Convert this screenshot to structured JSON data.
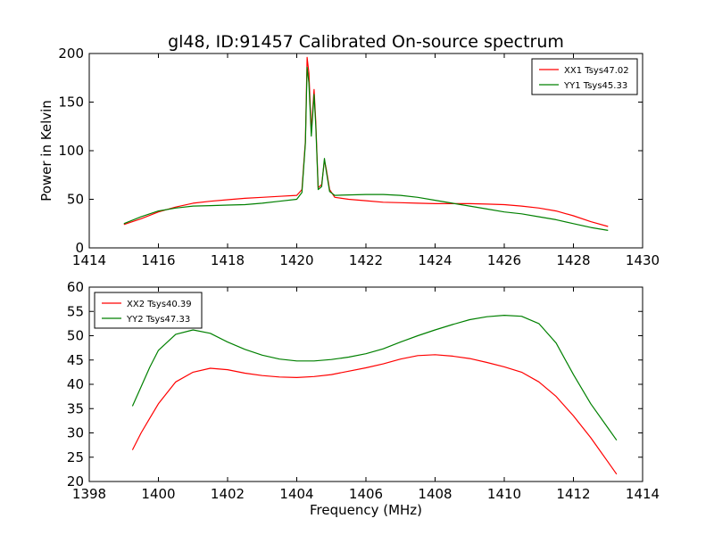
{
  "figure": {
    "title": "gl48, ID:91457 Calibrated On-source spectrum"
  },
  "chart_data": [
    {
      "type": "line",
      "panel": "top",
      "title": "gl48, ID:91457 Calibrated On-source spectrum",
      "xlabel": "",
      "ylabel": "Power in Kelvin",
      "xlim": [
        1414,
        1430
      ],
      "ylim": [
        0,
        200
      ],
      "xticks": [
        1414,
        1416,
        1418,
        1420,
        1422,
        1424,
        1426,
        1428,
        1430
      ],
      "yticks": [
        0,
        50,
        100,
        150,
        200
      ],
      "grid": false,
      "legend": "top-right",
      "series": [
        {
          "name": "XX1 Tsys47.02",
          "color": "#ff0000",
          "x": [
            1415.0,
            1415.5,
            1416.0,
            1416.5,
            1417.0,
            1417.5,
            1418.0,
            1418.5,
            1419.0,
            1419.5,
            1420.0,
            1420.15,
            1420.25,
            1420.3,
            1420.35,
            1420.42,
            1420.5,
            1420.55,
            1420.62,
            1420.72,
            1420.8,
            1420.85,
            1420.95,
            1421.1,
            1421.5,
            1422.0,
            1422.5,
            1423.0,
            1423.5,
            1424.0,
            1424.5,
            1425.0,
            1425.5,
            1426.0,
            1426.5,
            1427.0,
            1427.5,
            1428.0,
            1428.5,
            1429.0
          ],
          "y": [
            24,
            30,
            37,
            42,
            46,
            48,
            49.5,
            51,
            52,
            53,
            54,
            60,
            110,
            196,
            180,
            120,
            163,
            130,
            62,
            65,
            90,
            82,
            60,
            52,
            50,
            48.5,
            47,
            46.5,
            46,
            45.5,
            45.5,
            45.5,
            45,
            44.5,
            43,
            41,
            38,
            33,
            27,
            22
          ]
        },
        {
          "name": "YY1 Tsys45.33",
          "color": "#008000",
          "x": [
            1415.0,
            1415.5,
            1416.0,
            1416.5,
            1417.0,
            1417.5,
            1418.0,
            1418.5,
            1419.0,
            1419.5,
            1420.0,
            1420.15,
            1420.25,
            1420.3,
            1420.35,
            1420.42,
            1420.5,
            1420.55,
            1420.62,
            1420.72,
            1420.8,
            1420.85,
            1420.95,
            1421.1,
            1421.5,
            1422.0,
            1422.5,
            1423.0,
            1423.5,
            1424.0,
            1424.5,
            1425.0,
            1425.5,
            1426.0,
            1426.5,
            1427.0,
            1427.5,
            1428.0,
            1428.5,
            1429.0
          ],
          "y": [
            25,
            32,
            38,
            41,
            43,
            43.5,
            44,
            44.5,
            46,
            48,
            50,
            57,
            108,
            186,
            170,
            115,
            158,
            126,
            60,
            63,
            92,
            80,
            58,
            54,
            54.5,
            55,
            55,
            54,
            52,
            49,
            46,
            43,
            40,
            37,
            35,
            32,
            29,
            25,
            21,
            18
          ]
        }
      ]
    },
    {
      "type": "line",
      "panel": "bottom",
      "title": "",
      "xlabel": "Frequency (MHz)",
      "ylabel": "",
      "xlim": [
        1398,
        1414
      ],
      "ylim": [
        20,
        60
      ],
      "xticks": [
        1398,
        1400,
        1402,
        1404,
        1406,
        1408,
        1410,
        1412,
        1414
      ],
      "yticks": [
        20,
        25,
        30,
        35,
        40,
        45,
        50,
        55,
        60
      ],
      "grid": false,
      "legend": "top-left",
      "series": [
        {
          "name": "XX2 Tsys40.39",
          "color": "#ff0000",
          "x": [
            1399.25,
            1399.5,
            1399.75,
            1400.0,
            1400.5,
            1401.0,
            1401.5,
            1402.0,
            1402.5,
            1403.0,
            1403.5,
            1404.0,
            1404.5,
            1405.0,
            1405.5,
            1406.0,
            1406.5,
            1407.0,
            1407.5,
            1408.0,
            1408.5,
            1409.0,
            1409.5,
            1410.0,
            1410.5,
            1411.0,
            1411.5,
            1412.0,
            1412.5,
            1413.0,
            1413.25
          ],
          "y": [
            26.5,
            30,
            33,
            36,
            40.5,
            42.5,
            43.3,
            43,
            42.3,
            41.8,
            41.5,
            41.4,
            41.6,
            42,
            42.7,
            43.4,
            44.2,
            45.2,
            45.9,
            46.1,
            45.8,
            45.3,
            44.5,
            43.6,
            42.5,
            40.5,
            37.5,
            33.5,
            29,
            24,
            21.5
          ]
        },
        {
          "name": "YY2 Tsys47.33",
          "color": "#008000",
          "x": [
            1399.25,
            1399.5,
            1399.75,
            1400.0,
            1400.5,
            1401.0,
            1401.5,
            1402.0,
            1402.5,
            1403.0,
            1403.5,
            1404.0,
            1404.5,
            1405.0,
            1405.5,
            1406.0,
            1406.5,
            1407.0,
            1407.5,
            1408.0,
            1408.5,
            1409.0,
            1409.5,
            1410.0,
            1410.5,
            1411.0,
            1411.5,
            1412.0,
            1412.5,
            1413.0,
            1413.25
          ],
          "y": [
            35.5,
            39.5,
            43.5,
            47,
            50.3,
            51.2,
            50.5,
            48.7,
            47.2,
            46,
            45.2,
            44.8,
            44.8,
            45.1,
            45.6,
            46.3,
            47.3,
            48.7,
            50,
            51.2,
            52.3,
            53.3,
            53.9,
            54.2,
            54,
            52.5,
            48.5,
            42,
            36,
            31,
            28.5
          ]
        }
      ]
    }
  ]
}
